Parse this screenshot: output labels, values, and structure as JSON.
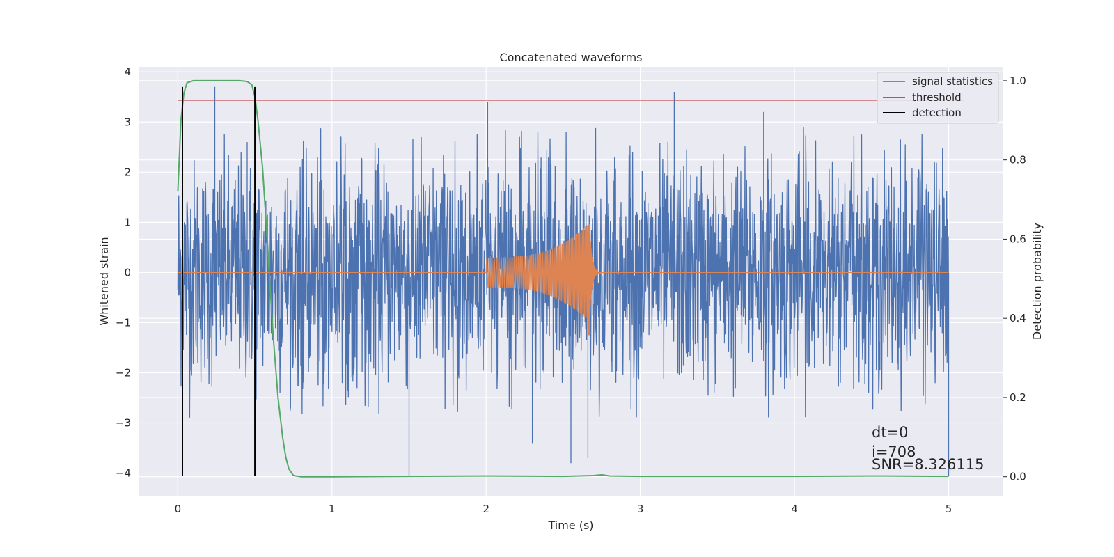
{
  "chart_data": {
    "type": "line",
    "title": "Concatenated waveforms",
    "xlabel": "Time (s)",
    "ylabel": "Whitened strain",
    "y2label": "Detection probability",
    "xlim": [
      -0.25,
      5.35
    ],
    "ylim": [
      -4.45,
      4.1
    ],
    "y2lim": [
      -0.048,
      1.035
    ],
    "xticks": [
      0,
      1,
      2,
      3,
      4,
      5
    ],
    "yticks": [
      -4,
      -3,
      -2,
      -1,
      0,
      1,
      2,
      3,
      4
    ],
    "y2ticks": [
      0.0,
      0.2,
      0.4,
      0.6,
      0.8,
      1.0
    ],
    "grid": true,
    "legend_position": "top-right",
    "colors": {
      "strain": "#4c72b0",
      "template": "#dd8452",
      "signal_statistics": "#55a868",
      "threshold": "#c44e52",
      "detection": "#000000",
      "background": "#eaeaf2",
      "grid": "#ffffff"
    },
    "strain_noise": {
      "x_range": [
        0,
        5
      ],
      "typical_amplitude": 2.0,
      "notable_peaks": [
        {
          "x": 0.24,
          "y": 3.7
        },
        {
          "x": 0.45,
          "y": 2.6
        },
        {
          "x": 1.5,
          "y": -4.05
        },
        {
          "x": 2.01,
          "y": 3.4
        },
        {
          "x": 2.3,
          "y": -3.4
        },
        {
          "x": 2.55,
          "y": -3.8
        },
        {
          "x": 2.66,
          "y": -3.7
        },
        {
          "x": 3.22,
          "y": 3.6
        },
        {
          "x": 3.8,
          "y": 3.2
        },
        {
          "x": 5.0,
          "y": -4.05
        }
      ]
    },
    "template_chirp": {
      "start": 2.0,
      "merger": 2.67,
      "end": 2.75,
      "start_amplitude": 0.3,
      "peak_amplitude": 1.0,
      "min_amplitude": -1.25
    },
    "series": [
      {
        "name": "signal statistics",
        "axis": "right",
        "x": [
          0,
          0.02,
          0.04,
          0.06,
          0.1,
          0.2,
          0.3,
          0.4,
          0.45,
          0.48,
          0.5,
          0.52,
          0.55,
          0.58,
          0.6,
          0.62,
          0.65,
          0.68,
          0.7,
          0.72,
          0.75,
          0.8,
          1.0,
          2.0,
          2.5,
          2.7,
          2.75,
          2.8,
          3.0,
          4.0,
          4.5,
          5.0
        ],
        "y": [
          0.72,
          0.9,
          0.97,
          0.995,
          1.0,
          1.0,
          1.0,
          1.0,
          0.998,
          0.99,
          0.96,
          0.9,
          0.78,
          0.6,
          0.47,
          0.35,
          0.2,
          0.1,
          0.05,
          0.02,
          0.003,
          0.0,
          0.0,
          0.002,
          0.001,
          0.003,
          0.005,
          0.002,
          0.001,
          0.001,
          0.002,
          0.001
        ]
      },
      {
        "name": "threshold",
        "axis": "right",
        "x": [
          0,
          5.1
        ],
        "y": [
          0.951,
          0.951
        ]
      },
      {
        "name": "detection",
        "axis": "left",
        "segments": [
          {
            "x": 0.03,
            "y": [
              -4.05,
              3.7
            ]
          },
          {
            "x": 0.5,
            "y": [
              -4.05,
              3.7
            ]
          }
        ]
      }
    ],
    "annotations": [
      "dt=0",
      "i=708",
      "SNR=8.326115"
    ]
  }
}
